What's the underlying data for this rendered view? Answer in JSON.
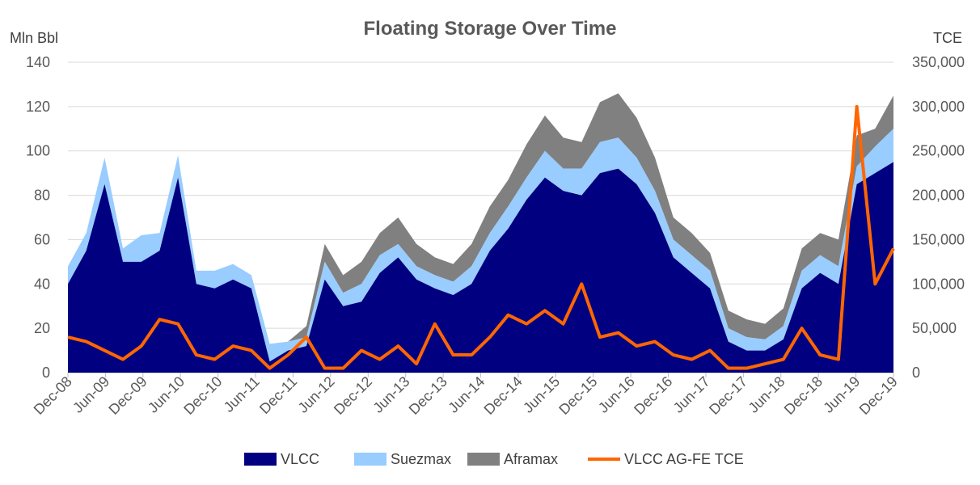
{
  "chart_data": {
    "type": "area",
    "title": "Floating Storage Over Time",
    "ylabel_left": "Mln Bbl",
    "ylabel_right": "TCE",
    "ylim_left": [
      0,
      140
    ],
    "ylim_right": [
      0,
      350000
    ],
    "yticks_left": [
      "0",
      "20",
      "40",
      "60",
      "80",
      "100",
      "120",
      "140"
    ],
    "yticks_right": [
      "0",
      "50,000",
      "100,000",
      "150,000",
      "200,000",
      "250,000",
      "300,000",
      "350,000"
    ],
    "xticks": [
      "Dec-08",
      "Jun-09",
      "Dec-09",
      "Jun-10",
      "Dec-10",
      "Jun-11",
      "Dec-11",
      "Jun-12",
      "Dec-12",
      "Jun-13",
      "Dec-13",
      "Jun-14",
      "Dec-14",
      "Jun-15",
      "Dec-15",
      "Jun-16",
      "Dec-16",
      "Jun-17",
      "Dec-17",
      "Jun-18",
      "Dec-18",
      "Jun-19",
      "Dec-19"
    ],
    "grid": "horizontal",
    "legend_position": "bottom",
    "x": [
      "Dec-08",
      "Mar-09",
      "Jun-09",
      "Sep-09",
      "Dec-09",
      "Mar-10",
      "Jun-10",
      "Sep-10",
      "Dec-10",
      "Mar-11",
      "Jun-11",
      "Sep-11",
      "Dec-11",
      "Mar-12",
      "Jun-12",
      "Sep-12",
      "Dec-12",
      "Mar-13",
      "Jun-13",
      "Sep-13",
      "Dec-13",
      "Mar-14",
      "Jun-14",
      "Sep-14",
      "Dec-14",
      "Mar-15",
      "Jun-15",
      "Sep-15",
      "Dec-15",
      "Mar-16",
      "Jun-16",
      "Sep-16",
      "Dec-16",
      "Mar-17",
      "Jun-17",
      "Sep-17",
      "Dec-17",
      "Mar-18",
      "Jun-18",
      "Sep-18",
      "Dec-18",
      "Mar-19",
      "Jun-19",
      "Sep-19",
      "Dec-19",
      "Mar-20"
    ],
    "series": [
      {
        "name": "VLCC",
        "axis": "left",
        "kind": "stacked-area",
        "color": "#000080",
        "values": [
          40,
          55,
          85,
          50,
          50,
          55,
          88,
          40,
          38,
          42,
          38,
          5,
          10,
          12,
          42,
          30,
          32,
          45,
          52,
          42,
          38,
          35,
          40,
          55,
          65,
          78,
          88,
          82,
          80,
          90,
          92,
          85,
          72,
          52,
          45,
          38,
          14,
          10,
          10,
          15,
          38,
          45,
          40,
          85,
          90,
          95
        ]
      },
      {
        "name": "Suezmax",
        "axis": "left",
        "kind": "stacked-area",
        "color": "#99ccff",
        "values": [
          8,
          8,
          12,
          6,
          12,
          8,
          10,
          6,
          8,
          7,
          6,
          8,
          4,
          4,
          8,
          6,
          8,
          8,
          6,
          6,
          6,
          6,
          8,
          8,
          10,
          10,
          12,
          10,
          12,
          14,
          14,
          12,
          10,
          8,
          8,
          8,
          6,
          6,
          5,
          6,
          8,
          8,
          8,
          8,
          12,
          15
        ]
      },
      {
        "name": "Aframax",
        "axis": "left",
        "kind": "stacked-area",
        "color": "#808080",
        "values": [
          0,
          0,
          0,
          0,
          0,
          0,
          0,
          0,
          0,
          0,
          0,
          0,
          0,
          5,
          8,
          8,
          10,
          10,
          12,
          10,
          8,
          8,
          10,
          12,
          12,
          15,
          16,
          14,
          12,
          18,
          20,
          18,
          15,
          10,
          10,
          8,
          8,
          8,
          7,
          8,
          10,
          10,
          12,
          14,
          8,
          15
        ]
      },
      {
        "name": "VLCC AG-FE TCE",
        "axis": "right",
        "kind": "line",
        "color": "#ff6600",
        "values": [
          40000,
          35000,
          25000,
          15000,
          30000,
          60000,
          55000,
          20000,
          15000,
          30000,
          25000,
          5000,
          20000,
          40000,
          5000,
          5000,
          25000,
          15000,
          30000,
          10000,
          55000,
          20000,
          20000,
          40000,
          65000,
          55000,
          70000,
          55000,
          100000,
          40000,
          45000,
          30000,
          35000,
          20000,
          15000,
          25000,
          5000,
          5000,
          10000,
          15000,
          50000,
          20000,
          15000,
          300000,
          100000,
          140000
        ]
      }
    ]
  }
}
